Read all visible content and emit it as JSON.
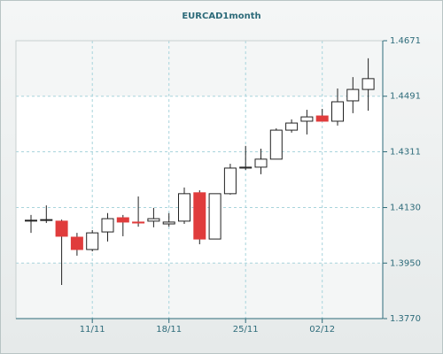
{
  "chart_data": {
    "type": "candlestick",
    "title": "EURCAD1month",
    "categories": [
      null,
      null,
      null,
      null,
      "11/11",
      null,
      null,
      null,
      null,
      "18/11",
      null,
      null,
      null,
      null,
      "25/11",
      null,
      null,
      null,
      null,
      "02/12",
      null,
      null,
      null
    ],
    "open": [
      1.4089,
      1.4091,
      1.4086,
      1.4034,
      1.3994,
      1.4051,
      1.4097,
      1.4083,
      1.4086,
      1.4077,
      1.4086,
      1.4178,
      1.4028,
      1.4175,
      1.4258,
      1.4261,
      1.4287,
      1.4381,
      1.441,
      1.4427,
      1.441,
      1.4476,
      1.4513
    ],
    "high": [
      1.4106,
      1.4137,
      1.4091,
      1.4048,
      1.4057,
      1.4112,
      1.4106,
      1.4166,
      1.4129,
      1.4112,
      1.4195,
      1.4186,
      1.4175,
      1.4272,
      1.433,
      1.4321,
      1.4387,
      1.4416,
      1.4447,
      1.445,
      1.4516,
      1.4553,
      1.4614
    ],
    "low": [
      1.4048,
      1.408,
      1.3879,
      1.3974,
      1.3988,
      1.402,
      1.4037,
      1.4068,
      1.4066,
      1.4068,
      1.4077,
      1.4011,
      1.4028,
      1.4172,
      1.4252,
      1.4238,
      1.4287,
      1.4373,
      1.4367,
      1.441,
      1.4396,
      1.4436,
      1.4444
    ],
    "close": [
      1.4089,
      1.4091,
      1.4037,
      1.3994,
      1.4048,
      1.4094,
      1.4083,
      1.408,
      1.4094,
      1.4083,
      1.4175,
      1.4028,
      1.4175,
      1.4258,
      1.4261,
      1.4287,
      1.4381,
      1.4404,
      1.4424,
      1.441,
      1.4473,
      1.4513,
      1.4548
    ],
    "up_color": "#ffffff",
    "down_color": "#e03c3c",
    "ylim": [
      1.377,
      1.4671
    ],
    "yticks": [
      {
        "value": 1.377,
        "label": "1.3770"
      },
      {
        "value": 1.395,
        "label": "1.3950"
      },
      {
        "value": 1.413,
        "label": "1.4130"
      },
      1.4311,
      1.4491,
      1.4671
    ],
    "grid": true
  }
}
